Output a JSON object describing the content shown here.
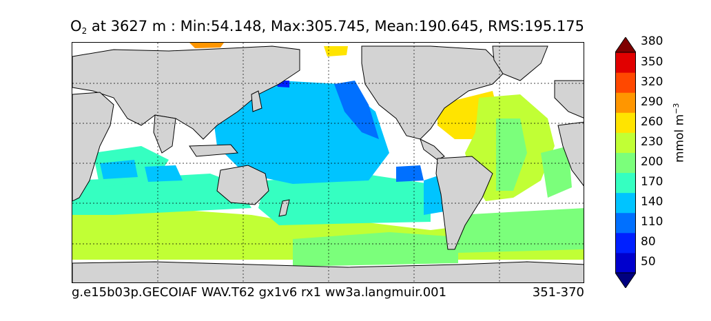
{
  "title": {
    "species": "O",
    "subscript": "2",
    "rest": " at 3627 m : Min:54.148, Max:305.745, Mean:190.645, RMS:195.175"
  },
  "footer": {
    "case_name": "g.e15b03p.GECOIAF WAV.T62 gx1v6 rx1 ww3a.langmuir.001",
    "years": "351-370"
  },
  "colorbar": {
    "unit_base": "mmol m",
    "unit_exp": "−3",
    "ticks": [
      "50",
      "80",
      "110",
      "140",
      "170",
      "200",
      "230",
      "260",
      "290",
      "320",
      "350",
      "380"
    ],
    "colors": [
      "#00007f",
      "#0000cd",
      "#0020ff",
      "#0070ff",
      "#00c4ff",
      "#35ffc1",
      "#7bff7b",
      "#c1ff35",
      "#ffe400",
      "#ff9600",
      "#ff4800",
      "#e10000",
      "#7f0000"
    ]
  },
  "map": {
    "land_color": "#d3d3d3",
    "no_data_color": "#ffffff"
  }
}
